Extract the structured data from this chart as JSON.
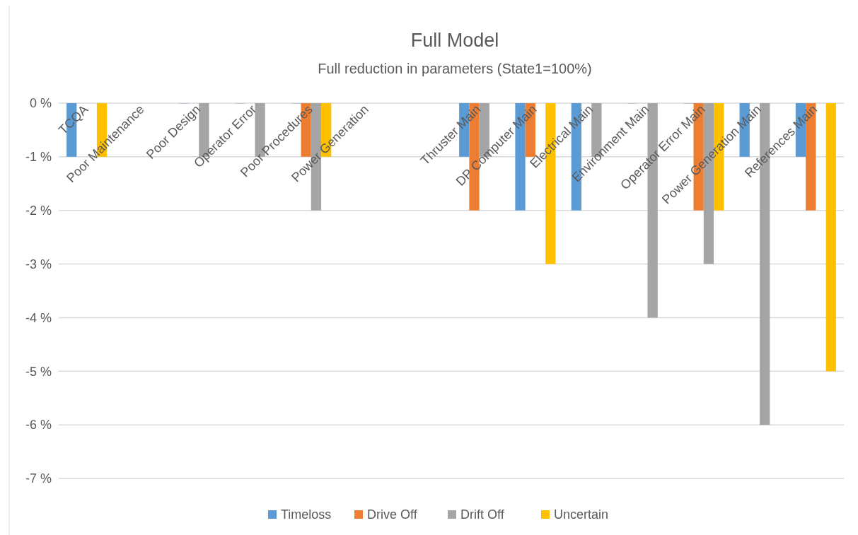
{
  "chart_data": {
    "type": "bar",
    "title": "Full Model",
    "subtitle": "Full reduction in parameters (State1=100%)",
    "categories": [
      "TCQA",
      "Poor Maintenance",
      "Poor Design",
      "Operator Error",
      "Poor Procedures",
      "Power Generation",
      null,
      "Thruster Main",
      "DP Computer Main",
      "Electrical Main",
      "Environment Main",
      "Operator Error Main",
      "Power Generation Main",
      "References Main"
    ],
    "series": [
      {
        "name": "Timeloss",
        "color": "#5b9bd5",
        "values": [
          -1,
          null,
          0,
          0,
          0,
          null,
          null,
          -1,
          -2,
          -2,
          0,
          0,
          -1,
          -1
        ]
      },
      {
        "name": "Drive Off",
        "color": "#ed7d31",
        "values": [
          null,
          null,
          null,
          null,
          -1,
          null,
          null,
          -2,
          -1,
          null,
          null,
          -2,
          null,
          -2
        ]
      },
      {
        "name": "Drift Off",
        "color": "#a5a5a5",
        "values": [
          null,
          null,
          -1,
          -1,
          -2,
          null,
          null,
          -1,
          null,
          -1,
          -4,
          -3,
          -6,
          null
        ]
      },
      {
        "name": "Uncertain",
        "color": "#ffc000",
        "values": [
          -1,
          null,
          null,
          null,
          -1,
          null,
          null,
          null,
          -3,
          null,
          null,
          -2,
          null,
          -5
        ]
      }
    ],
    "ylim": [
      -7,
      0
    ],
    "yticks": [
      {
        "value": 0,
        "label": "0 %"
      },
      {
        "value": -1,
        "label": "-1 %"
      },
      {
        "value": -2,
        "label": "-2 %"
      },
      {
        "value": -3,
        "label": "-3 %"
      },
      {
        "value": -4,
        "label": "-4 %"
      },
      {
        "value": -5,
        "label": "-5 %"
      },
      {
        "value": -6,
        "label": "-6 %"
      },
      {
        "value": -7,
        "label": "-7 %"
      }
    ],
    "grid": "y",
    "legend": "bottom"
  }
}
